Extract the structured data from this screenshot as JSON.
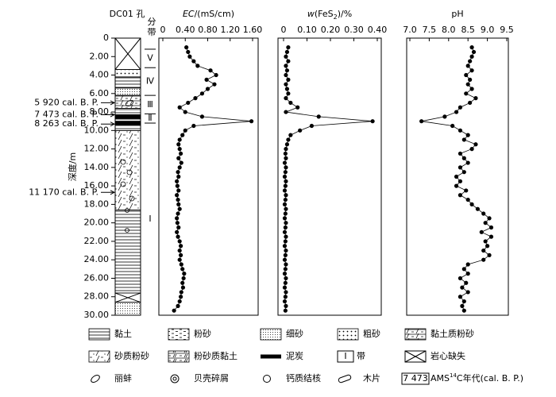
{
  "header": {
    "title": "DC01 孔"
  },
  "depth_axis": {
    "label": "深度/m",
    "ylim": [
      0,
      30
    ],
    "yticks": [
      0,
      {
        "value": 2,
        "label": "2.00"
      },
      {
        "value": 4,
        "label": "4.00"
      },
      {
        "value": 6,
        "label": "6.00"
      },
      {
        "value": 8,
        "label": "8.00"
      },
      {
        "value": 10,
        "label": "10.00"
      },
      {
        "value": 12,
        "label": "12.00"
      },
      {
        "value": 14,
        "label": "14.00"
      },
      {
        "value": 16,
        "label": "16.00"
      },
      {
        "value": 18,
        "label": "18.00"
      },
      {
        "value": 20,
        "label": "20.00"
      },
      {
        "value": 22,
        "label": "22.00"
      },
      {
        "value": 24,
        "label": "24.00"
      },
      {
        "value": 26,
        "label": "26.00"
      },
      {
        "value": 28,
        "label": "28.00"
      },
      {
        "value": 30,
        "label": "30.00"
      }
    ],
    "samples": [
      1.0,
      1.5,
      2.0,
      2.5,
      3.0,
      3.5,
      4.0,
      4.5,
      5.0,
      5.5,
      6.0,
      6.5,
      7.0,
      7.5,
      8.0,
      8.5,
      9.0,
      9.5,
      10.0,
      10.5,
      11.0,
      11.5,
      12.0,
      12.5,
      13.0,
      13.5,
      14.0,
      14.5,
      15.0,
      15.5,
      16.0,
      16.5,
      17.0,
      17.5,
      18.0,
      18.5,
      19.0,
      19.5,
      20.0,
      20.5,
      21.0,
      21.5,
      22.0,
      22.5,
      23.0,
      23.5,
      24.0,
      24.5,
      25.0,
      25.5,
      26.0,
      26.5,
      27.0,
      27.5,
      28.0,
      28.5,
      29.0,
      29.5
    ]
  },
  "lithology": [
    {
      "top": 0,
      "bottom": 3.4,
      "legend": 9
    },
    {
      "top": 3.4,
      "bottom": 4.2,
      "legend": 3
    },
    {
      "top": 4.2,
      "bottom": 5.4,
      "legend": 0
    },
    {
      "top": 5.4,
      "bottom": 6.2,
      "legend": 2
    },
    {
      "top": 6.2,
      "bottom": 7.6,
      "legend": 4
    },
    {
      "top": 7.6,
      "bottom": 8.3,
      "legend": 0
    },
    {
      "top": 8.3,
      "bottom": 8.7,
      "legend": 7
    },
    {
      "top": 8.7,
      "bottom": 9.0,
      "legend": 0
    },
    {
      "top": 9.0,
      "bottom": 9.4,
      "legend": 7
    },
    {
      "top": 9.4,
      "bottom": 10.0,
      "legend": 0
    },
    {
      "top": 10.0,
      "bottom": 18.6,
      "legend": 5
    },
    {
      "top": 18.6,
      "bottom": 27.6,
      "legend": 0
    },
    {
      "top": 27.6,
      "bottom": 28.6,
      "legend": 9
    },
    {
      "top": 28.6,
      "bottom": 30,
      "legend": 2
    }
  ],
  "age_markers": [
    {
      "label": "5 920 cal. B. P.",
      "depth": 7.0
    },
    {
      "label": "7 473 cal. B. P.",
      "depth": 8.3
    },
    {
      "label": "8 263 cal. B. P.",
      "depth": 9.3
    },
    {
      "label": "11 170 cal. B. P.",
      "depth": 16.7
    }
  ],
  "zones": {
    "title": "分带",
    "items": [
      {
        "label": "Ⅴ",
        "top": 1.2,
        "bottom": 3.2
      },
      {
        "label": "Ⅳ",
        "top": 3.2,
        "bottom": 6.2
      },
      {
        "label": "Ⅲ",
        "top": 6.2,
        "bottom": 8.2
      },
      {
        "label": "Ⅱ",
        "top": 8.2,
        "bottom": 9.2
      },
      {
        "label": "Ⅰ",
        "top": 9.2,
        "bottom": 30
      }
    ]
  },
  "chart_data": [
    {
      "type": "line",
      "title": [
        "EC",
        "/(mS/cm)"
      ],
      "xlim": [
        0,
        1.6
      ],
      "xticks": [
        0,
        {
          "value": 0.4,
          "label": "0.40"
        },
        {
          "value": 0.8,
          "label": "0.80"
        },
        {
          "value": 1.2,
          "label": "1.20"
        },
        {
          "value": 1.6,
          "label": "1.60"
        }
      ],
      "color": "#000000",
      "values": [
        0.42,
        0.45,
        0.48,
        0.55,
        0.62,
        0.85,
        0.95,
        0.78,
        0.92,
        0.8,
        0.7,
        0.58,
        0.45,
        0.3,
        0.4,
        0.7,
        1.58,
        0.55,
        0.4,
        0.35,
        0.3,
        0.28,
        0.3,
        0.32,
        0.28,
        0.33,
        0.3,
        0.27,
        0.28,
        0.25,
        0.26,
        0.28,
        0.25,
        0.27,
        0.28,
        0.3,
        0.27,
        0.25,
        0.26,
        0.28,
        0.25,
        0.27,
        0.3,
        0.32,
        0.3,
        0.32,
        0.3,
        0.33,
        0.35,
        0.38,
        0.37,
        0.35,
        0.36,
        0.33,
        0.32,
        0.3,
        0.27,
        0.2
      ]
    },
    {
      "type": "line",
      "title": [
        "w",
        "(FeS",
        "2",
        ")/%"
      ],
      "xlim": [
        0,
        0.4
      ],
      "xticks": [
        0,
        {
          "value": 0.1,
          "label": "0.10"
        },
        {
          "value": 0.2,
          "label": "0.20"
        },
        {
          "value": 0.3,
          "label": "0.30"
        },
        {
          "value": 0.4,
          "label": "0.40"
        }
      ],
      "color": "#000000",
      "values": [
        0.02,
        0.015,
        0.01,
        0.02,
        0.01,
        0.015,
        0.01,
        0.02,
        0.01,
        0.015,
        0.02,
        0.01,
        0.03,
        0.06,
        0.01,
        0.15,
        0.38,
        0.12,
        0.07,
        0.03,
        0.02,
        0.015,
        0.01,
        0.008,
        0.01,
        0.005,
        0.01,
        0.008,
        0.005,
        0.01,
        0.008,
        0.005,
        0.01,
        0.008,
        0.005,
        0.01,
        0.008,
        0.005,
        0.01,
        0.008,
        0.005,
        0.01,
        0.008,
        0.005,
        0.01,
        0.008,
        0.005,
        0.01,
        0.008,
        0.005,
        0.01,
        0.008,
        0.005,
        0.01,
        0.008,
        0.005,
        0.01,
        0.008
      ]
    },
    {
      "type": "line",
      "title": [
        "pH"
      ],
      "xlim": [
        7.0,
        9.5
      ],
      "xticks": [
        {
          "value": 7.0,
          "label": "7.0"
        },
        7.5,
        {
          "value": 8.0,
          "label": "8.0"
        },
        8.5,
        {
          "value": 9.0,
          "label": "9.0"
        },
        9.5
      ],
      "color": "#000000",
      "values": [
        8.6,
        8.65,
        8.6,
        8.55,
        8.5,
        8.6,
        8.45,
        8.55,
        8.5,
        8.6,
        8.45,
        8.7,
        8.55,
        8.3,
        8.2,
        7.9,
        7.3,
        8.1,
        8.3,
        8.5,
        8.4,
        8.7,
        8.6,
        8.3,
        8.4,
        8.5,
        8.3,
        8.4,
        8.2,
        8.3,
        8.2,
        8.45,
        8.3,
        8.5,
        8.6,
        8.75,
        8.9,
        9.05,
        8.95,
        9.1,
        8.85,
        9.1,
        8.95,
        9.0,
        8.9,
        9.05,
        8.9,
        8.5,
        8.4,
        8.5,
        8.3,
        8.45,
        8.35,
        8.5,
        8.3,
        8.4,
        8.35,
        8.4
      ]
    }
  ],
  "legend": [
    {
      "label": "黏土"
    },
    {
      "label": "粉砂"
    },
    {
      "label": "细砂"
    },
    {
      "label": "粗砂"
    },
    {
      "label": "黏土质粉砂"
    },
    {
      "label": "砂质粉砂"
    },
    {
      "label": "粉砂质黏土"
    },
    {
      "label": "泥炭"
    },
    {
      "symbol": "Ⅰ",
      "label": "带"
    },
    {
      "label": "岩心缺失"
    },
    {
      "label": "丽蚌"
    },
    {
      "label": "贝壳碎屑"
    },
    {
      "label": "钙质结核"
    },
    {
      "label": "木片"
    },
    {
      "symbol": "7 473",
      "label": "AMS",
      "label_sup": "14",
      "label_rest": "C年代(cal. B. P.)"
    }
  ]
}
